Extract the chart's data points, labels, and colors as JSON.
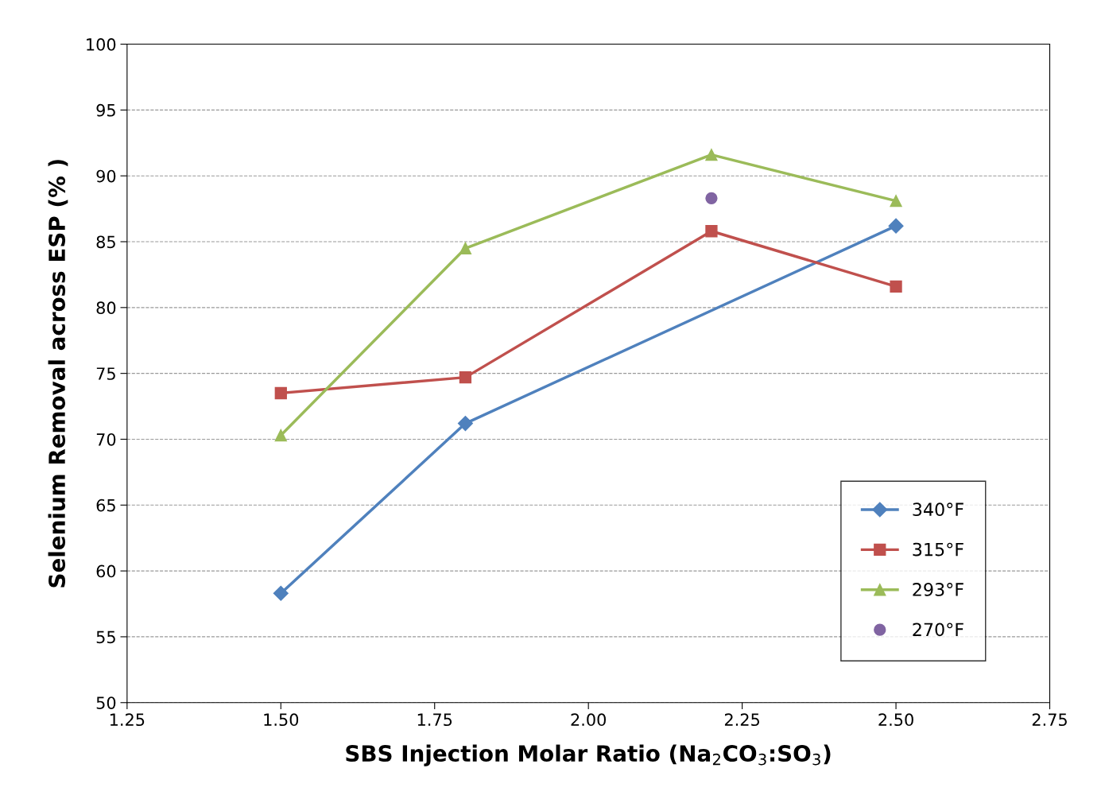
{
  "chart_data": {
    "type": "line",
    "xlabel": "SBS Injection Molar Ratio (Na$_{2}$CO$_{3}$:SO$_{3}$)",
    "ylabel": "Selenium Removal across ESP (% )",
    "xlim": [
      1.25,
      2.75
    ],
    "xticks": [
      {
        "value": 1.25,
        "label": "1.25"
      },
      {
        "value": 1.5,
        "label": "1.50"
      },
      {
        "value": 1.75,
        "label": "1.75"
      },
      {
        "value": 2.0,
        "label": "2.00"
      },
      {
        "value": 2.25,
        "label": "2.25"
      },
      {
        "value": 2.5,
        "label": "2.50"
      },
      {
        "value": 2.75,
        "label": "2.75"
      }
    ],
    "ylim": [
      50,
      100
    ],
    "yticks": [
      50,
      55,
      60,
      65,
      70,
      75,
      80,
      85,
      90,
      95,
      100
    ],
    "grid": "y",
    "legend": "bottom right",
    "series": [
      {
        "name": "340°F",
        "color": "#4f81bd",
        "marker": "diamond",
        "x": [
          1.5,
          1.8,
          2.5
        ],
        "values": [
          58.3,
          71.2,
          86.2
        ]
      },
      {
        "name": "315°F",
        "color": "#c0504d",
        "marker": "square",
        "x": [
          1.5,
          1.8,
          2.2,
          2.5
        ],
        "values": [
          73.5,
          74.7,
          85.8,
          81.6
        ]
      },
      {
        "name": "293°F",
        "color": "#9bbb59",
        "marker": "triangle",
        "x": [
          1.5,
          1.8,
          2.2,
          2.5
        ],
        "values": [
          70.3,
          84.5,
          91.6,
          88.1
        ]
      },
      {
        "name": "270°F",
        "color": "#8064a2",
        "type": "scatter",
        "marker": "circle",
        "x": [
          2.2
        ],
        "values": [
          88.3
        ]
      }
    ]
  }
}
